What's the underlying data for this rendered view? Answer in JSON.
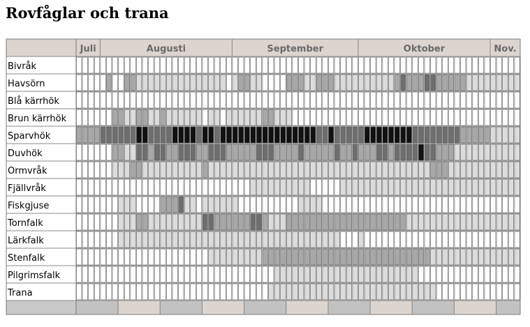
{
  "page": {
    "title": "Rovfåglar och trana"
  },
  "chart_data": {
    "type": "heatmap",
    "title": "Rovfåglar och trana",
    "months": [
      {
        "label": "Juli",
        "start_col": 0,
        "span": 4
      },
      {
        "label": "Augusti",
        "start_col": 4,
        "span": 22
      },
      {
        "label": "September",
        "start_col": 26,
        "span": 21
      },
      {
        "label": "Oktober",
        "start_col": 47,
        "span": 22
      },
      {
        "label": "Nov.",
        "start_col": 69,
        "span": 5
      }
    ],
    "columns": 74,
    "value_range": [
      0,
      4
    ],
    "value_note": "0 = white (none) … 4 = black (most); read as relative shade intensity",
    "colors": {
      "header_bg": "#dcd4cf",
      "footer_bg": "#c2c2c2",
      "shade_1": "#dcdcdc",
      "shade_2": "#a8a8a8",
      "shade_3": "#6e6e6e",
      "shade_4": "#111111"
    },
    "series": [
      {
        "name": "Bivråk",
        "values": [
          0,
          0,
          0,
          0,
          0,
          0,
          0,
          0,
          0,
          0,
          0,
          0,
          0,
          0,
          0,
          0,
          0,
          0,
          0,
          0,
          0,
          0,
          0,
          0,
          0,
          0,
          0,
          0,
          0,
          0,
          0,
          0,
          0,
          0,
          0,
          0,
          0,
          0,
          0,
          0,
          0,
          0,
          0,
          0,
          0,
          0,
          0,
          0,
          0,
          0,
          0,
          0,
          0,
          0,
          0,
          0,
          0,
          0,
          0,
          0,
          0,
          0,
          0,
          0,
          0,
          0,
          0,
          0,
          0,
          0,
          0,
          0,
          0,
          0
        ]
      },
      {
        "name": "Havsörn",
        "values": [
          0,
          0,
          0,
          0,
          0,
          2,
          0,
          0,
          2,
          2,
          1,
          1,
          1,
          1,
          1,
          1,
          1,
          1,
          1,
          1,
          1,
          1,
          1,
          1,
          1,
          0,
          1,
          2,
          2,
          1,
          1,
          0,
          0,
          0,
          0,
          2,
          2,
          2,
          1,
          1,
          2,
          2,
          2,
          1,
          1,
          1,
          1,
          1,
          1,
          1,
          1,
          1,
          1,
          2,
          3,
          2,
          2,
          2,
          3,
          3,
          2,
          2,
          2,
          2,
          2,
          1,
          1,
          1,
          1,
          1,
          1,
          1,
          1,
          1
        ]
      },
      {
        "name": "Blå kärrhök",
        "values": [
          0,
          0,
          0,
          0,
          0,
          0,
          0,
          0,
          0,
          0,
          0,
          0,
          0,
          0,
          0,
          0,
          0,
          0,
          0,
          0,
          0,
          0,
          0,
          0,
          0,
          0,
          0,
          0,
          0,
          0,
          0,
          0,
          0,
          0,
          0,
          0,
          0,
          0,
          0,
          0,
          0,
          0,
          0,
          0,
          0,
          0,
          0,
          0,
          0,
          0,
          0,
          0,
          0,
          0,
          0,
          0,
          0,
          0,
          0,
          0,
          0,
          0,
          0,
          0,
          0,
          0,
          0,
          0,
          0,
          0,
          0,
          0,
          0,
          0
        ]
      },
      {
        "name": "Brun kärrhök",
        "values": [
          0,
          0,
          0,
          0,
          0,
          0,
          2,
          2,
          1,
          1,
          2,
          2,
          1,
          1,
          2,
          1,
          1,
          1,
          1,
          1,
          1,
          0,
          1,
          1,
          0,
          1,
          1,
          1,
          1,
          1,
          1,
          2,
          2,
          1,
          1,
          1,
          0,
          0,
          0,
          0,
          0,
          0,
          0,
          0,
          0,
          0,
          0,
          0,
          0,
          0,
          0,
          0,
          0,
          0,
          0,
          0,
          0,
          0,
          0,
          0,
          0,
          0,
          0,
          0,
          0,
          0,
          0,
          0,
          0,
          0,
          0,
          0,
          0,
          0
        ]
      },
      {
        "name": "Sparvhök",
        "values": [
          2,
          2,
          2,
          2,
          3,
          3,
          3,
          3,
          3,
          3,
          4,
          4,
          3,
          3,
          3,
          3,
          4,
          4,
          4,
          4,
          3,
          4,
          4,
          3,
          4,
          4,
          4,
          4,
          4,
          4,
          4,
          4,
          4,
          4,
          4,
          4,
          4,
          4,
          4,
          4,
          3,
          3,
          4,
          3,
          3,
          3,
          3,
          3,
          4,
          4,
          4,
          4,
          4,
          4,
          4,
          4,
          3,
          3,
          3,
          3,
          3,
          3,
          3,
          3,
          2,
          2,
          2,
          2,
          2,
          1,
          1,
          1,
          1,
          1
        ]
      },
      {
        "name": "Duvhök",
        "values": [
          0,
          0,
          0,
          0,
          0,
          0,
          2,
          2,
          1,
          1,
          3,
          3,
          2,
          3,
          3,
          2,
          2,
          3,
          3,
          3,
          2,
          2,
          3,
          3,
          3,
          2,
          2,
          2,
          2,
          2,
          3,
          3,
          3,
          2,
          2,
          2,
          2,
          3,
          2,
          2,
          2,
          2,
          2,
          3,
          2,
          2,
          3,
          2,
          2,
          2,
          3,
          3,
          2,
          3,
          3,
          3,
          3,
          4,
          3,
          3,
          2,
          2,
          2,
          1,
          1,
          1,
          1,
          1,
          1,
          1,
          1,
          1,
          1,
          1
        ]
      },
      {
        "name": "Ormvråk",
        "values": [
          0,
          0,
          0,
          0,
          0,
          0,
          1,
          1,
          1,
          2,
          2,
          1,
          1,
          1,
          1,
          1,
          1,
          1,
          1,
          1,
          1,
          2,
          1,
          1,
          1,
          1,
          1,
          1,
          1,
          1,
          1,
          1,
          1,
          1,
          1,
          1,
          1,
          1,
          1,
          1,
          1,
          1,
          1,
          1,
          1,
          1,
          1,
          1,
          1,
          1,
          1,
          1,
          1,
          1,
          1,
          1,
          1,
          1,
          1,
          2,
          2,
          2,
          1,
          1,
          1,
          1,
          1,
          1,
          1,
          1,
          1,
          1,
          1,
          1
        ]
      },
      {
        "name": "Fjällvråk",
        "values": [
          0,
          0,
          0,
          0,
          0,
          0,
          0,
          0,
          0,
          0,
          0,
          0,
          0,
          0,
          0,
          0,
          0,
          0,
          0,
          0,
          0,
          0,
          0,
          0,
          0,
          0,
          0,
          0,
          0,
          1,
          1,
          1,
          1,
          1,
          1,
          1,
          1,
          1,
          1,
          0,
          0,
          0,
          0,
          0,
          1,
          1,
          1,
          1,
          1,
          1,
          1,
          1,
          1,
          1,
          1,
          1,
          1,
          1,
          1,
          1,
          1,
          1,
          1,
          1,
          1,
          1,
          1,
          1,
          1,
          1,
          1,
          1,
          1,
          1
        ]
      },
      {
        "name": "Fiskgjuse",
        "values": [
          0,
          0,
          0,
          0,
          0,
          0,
          0,
          1,
          1,
          1,
          0,
          0,
          0,
          0,
          2,
          2,
          2,
          3,
          1,
          1,
          0,
          1,
          1,
          1,
          1,
          1,
          1,
          0,
          0,
          0,
          0,
          0,
          0,
          0,
          0,
          0,
          0,
          1,
          1,
          1,
          1,
          0,
          0,
          0,
          0,
          0,
          0,
          0,
          0,
          0,
          0,
          0,
          0,
          0,
          0,
          0,
          0,
          0,
          0,
          0,
          0,
          0,
          0,
          0,
          0,
          0,
          0,
          0,
          0,
          0,
          0,
          0,
          0,
          0
        ]
      },
      {
        "name": "Tornfalk",
        "values": [
          0,
          0,
          0,
          0,
          0,
          0,
          0,
          1,
          1,
          1,
          2,
          2,
          1,
          1,
          1,
          1,
          1,
          1,
          1,
          1,
          1,
          3,
          3,
          2,
          2,
          2,
          2,
          2,
          2,
          3,
          3,
          2,
          1,
          1,
          1,
          2,
          2,
          2,
          2,
          2,
          2,
          2,
          2,
          2,
          2,
          2,
          2,
          2,
          2,
          2,
          2,
          2,
          2,
          2,
          2,
          1,
          1,
          1,
          1,
          1,
          1,
          1,
          1,
          1,
          1,
          1,
          1,
          1,
          1,
          1,
          1,
          1,
          1,
          1
        ]
      },
      {
        "name": "Lärkfalk",
        "values": [
          0,
          0,
          0,
          0,
          0,
          0,
          0,
          1,
          1,
          1,
          1,
          1,
          1,
          1,
          1,
          1,
          1,
          1,
          1,
          1,
          1,
          1,
          1,
          1,
          1,
          1,
          1,
          1,
          1,
          1,
          1,
          1,
          1,
          1,
          1,
          1,
          1,
          1,
          1,
          1,
          1,
          1,
          1,
          1,
          0,
          0,
          0,
          1,
          0,
          0,
          0,
          0,
          0,
          0,
          0,
          0,
          0,
          0,
          0,
          0,
          0,
          0,
          0,
          0,
          0,
          0,
          0,
          0,
          0,
          0,
          0,
          0,
          0,
          0
        ]
      },
      {
        "name": "Stenfalk",
        "values": [
          0,
          0,
          0,
          0,
          0,
          0,
          0,
          0,
          0,
          0,
          0,
          0,
          0,
          0,
          0,
          0,
          0,
          0,
          0,
          0,
          0,
          0,
          1,
          1,
          1,
          1,
          1,
          1,
          1,
          1,
          1,
          2,
          2,
          2,
          2,
          2,
          2,
          2,
          2,
          2,
          2,
          2,
          2,
          2,
          2,
          2,
          2,
          2,
          2,
          2,
          2,
          2,
          2,
          2,
          2,
          2,
          2,
          2,
          2,
          1,
          1,
          1,
          1,
          1,
          1,
          1,
          1,
          1,
          1,
          1,
          1,
          1,
          1,
          1
        ]
      },
      {
        "name": "Pilgrimsfalk",
        "values": [
          0,
          0,
          0,
          0,
          0,
          0,
          0,
          0,
          0,
          0,
          0,
          0,
          0,
          0,
          0,
          0,
          0,
          0,
          0,
          0,
          0,
          0,
          0,
          0,
          0,
          0,
          0,
          0,
          0,
          0,
          0,
          0,
          0,
          1,
          1,
          1,
          1,
          1,
          1,
          1,
          1,
          1,
          1,
          1,
          1,
          1,
          1,
          1,
          1,
          1,
          1,
          1,
          1,
          1,
          1,
          1,
          1,
          0,
          0,
          0,
          0,
          0,
          0,
          0,
          0,
          0,
          0,
          0,
          0,
          0,
          0,
          0,
          0,
          0
        ]
      },
      {
        "name": "Trana",
        "values": [
          0,
          0,
          0,
          0,
          0,
          0,
          0,
          0,
          0,
          0,
          0,
          0,
          0,
          0,
          0,
          0,
          0,
          0,
          0,
          0,
          0,
          0,
          0,
          0,
          0,
          0,
          0,
          0,
          0,
          0,
          0,
          0,
          1,
          1,
          1,
          1,
          1,
          1,
          1,
          1,
          1,
          1,
          1,
          1,
          1,
          1,
          1,
          1,
          1,
          1,
          1,
          1,
          1,
          1,
          1,
          1,
          1,
          1,
          1,
          1,
          0,
          0,
          0,
          0,
          0,
          0,
          0,
          0,
          0,
          0,
          0,
          0,
          0,
          0
        ]
      }
    ]
  }
}
